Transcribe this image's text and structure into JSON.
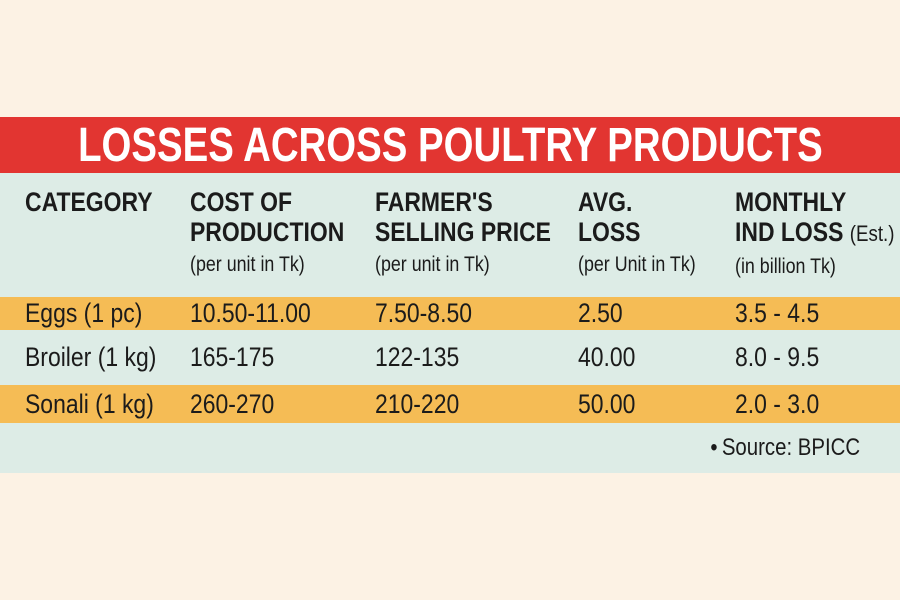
{
  "title": "LOSSES ACROSS POULTRY PRODUCTS",
  "header": {
    "columns": [
      {
        "line1": "CATEGORY",
        "line2": "",
        "suffix": "",
        "sub": ""
      },
      {
        "line1": "COST OF",
        "line2": "PRODUCTION",
        "suffix": "",
        "sub": "(per unit in Tk)"
      },
      {
        "line1": "FARMER'S",
        "line2": "SELLING PRICE",
        "suffix": "",
        "sub": "(per unit in Tk)"
      },
      {
        "line1": "AVG.",
        "line2": "LOSS",
        "suffix": "",
        "sub": "(per Unit in Tk)"
      },
      {
        "line1": "MONTHLY",
        "line2": "IND LOSS",
        "suffix": "(Est.)",
        "sub": "(in billion Tk)"
      }
    ]
  },
  "rows": [
    {
      "cells": [
        "Eggs (1 pc)",
        "10.50-11.00",
        "7.50-8.50",
        "2.50",
        "3.5 - 4.5"
      ]
    },
    {
      "cells": [
        "Broiler (1 kg)",
        "165-175",
        "122-135",
        "40.00",
        "8.0 - 9.5"
      ]
    },
    {
      "cells": [
        "Sonali (1 kg)",
        "260-270",
        "210-220",
        "50.00",
        "2.0 - 3.0"
      ]
    }
  ],
  "footer": {
    "bullet": "•",
    "source": "Source: BPICC"
  },
  "colors": {
    "background_cream": "#fcf2e4",
    "title_bar_red": "#e23531",
    "title_text_white": "#ffffff",
    "panel_mint": "#ddece6",
    "highlight_yellow": "#f5bc55",
    "text_black": "#1b1b1b"
  },
  "chart_data": {
    "type": "table",
    "title": "LOSSES ACROSS POULTRY PRODUCTS",
    "columns": [
      "CATEGORY",
      "COST OF PRODUCTION (per unit in Tk)",
      "FARMER'S SELLING PRICE (per unit in Tk)",
      "AVG. LOSS (per Unit in Tk)",
      "MONTHLY IND LOSS (Est.) (in billion Tk)"
    ],
    "rows": [
      [
        "Eggs (1 pc)",
        "10.50-11.00",
        "7.50-8.50",
        "2.50",
        "3.5 - 4.5"
      ],
      [
        "Broiler (1 kg)",
        "165-175",
        "122-135",
        "40.00",
        "8.0 - 9.5"
      ],
      [
        "Sonali (1 kg)",
        "260-270",
        "210-220",
        "50.00",
        "2.0 - 3.0"
      ]
    ],
    "source": "Source: BPICC"
  }
}
